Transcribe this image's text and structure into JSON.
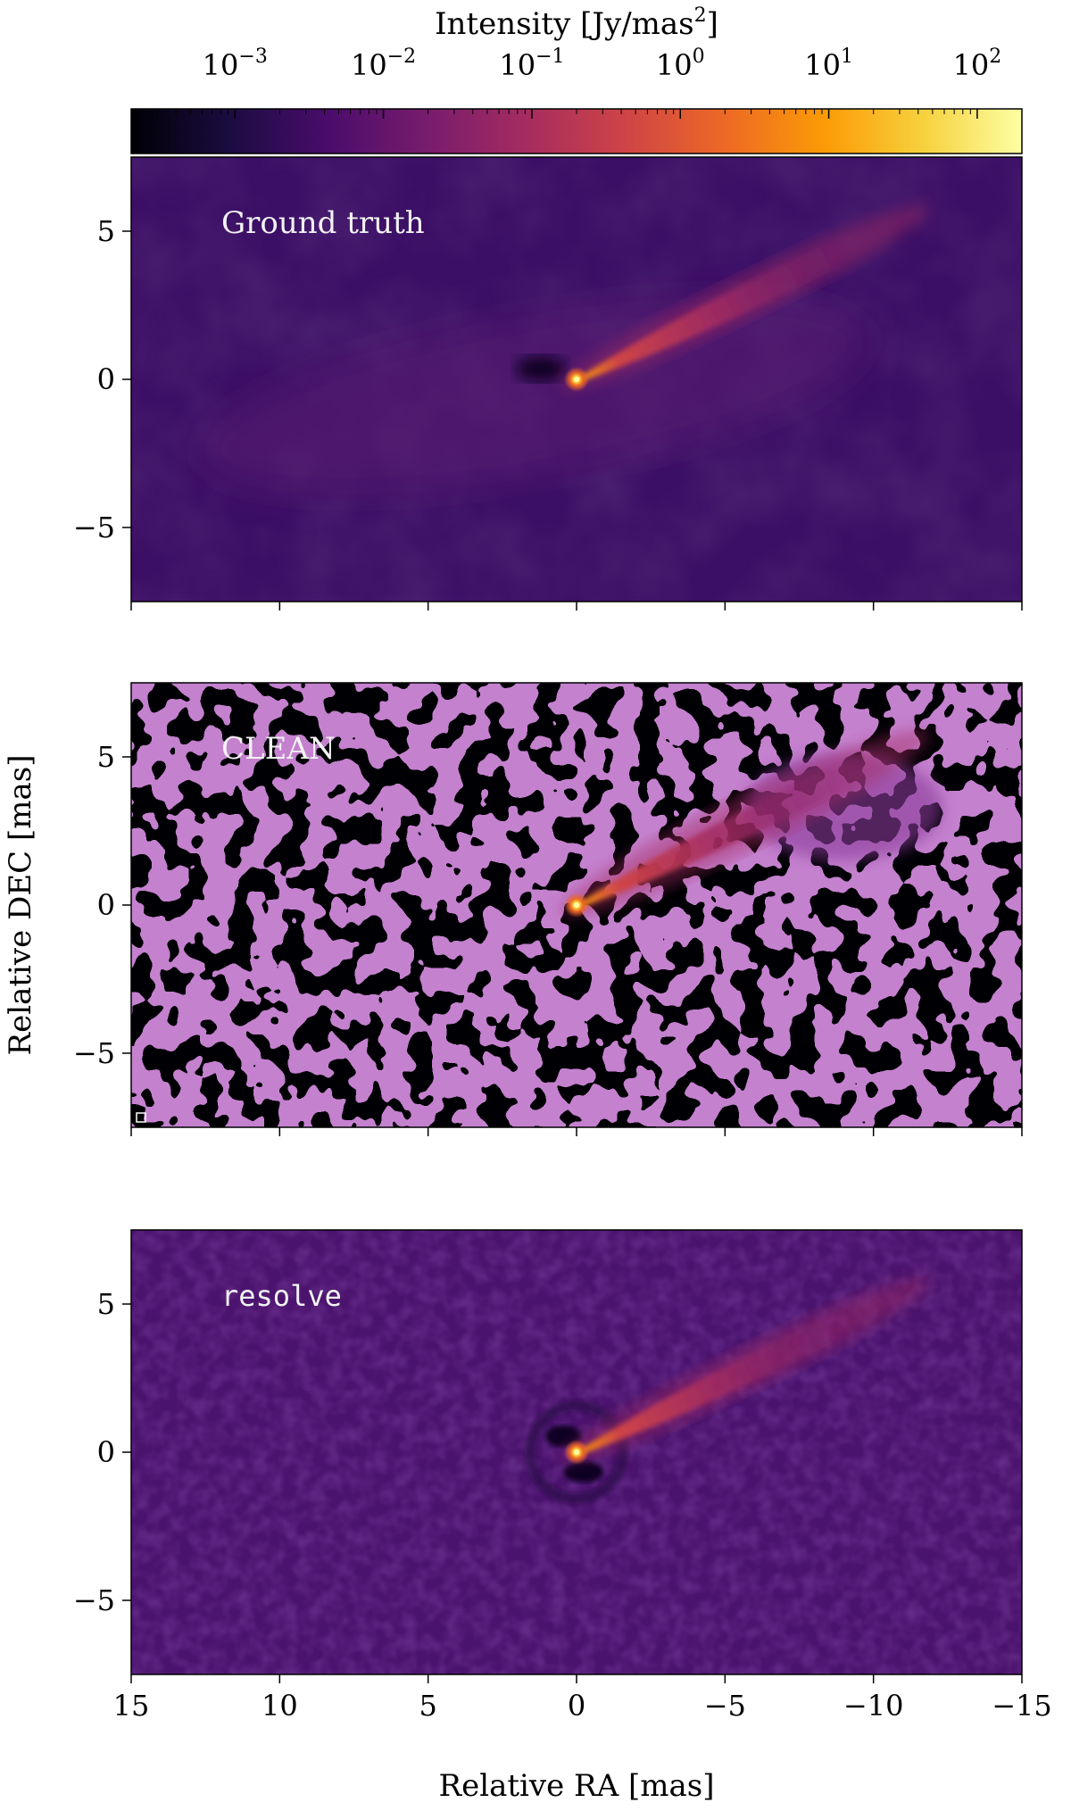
{
  "chart_data": {
    "type": "heatmap",
    "colorbar": {
      "label_prefix": "Intensity [Jy/mas",
      "label_exp": "2",
      "label_suffix": "]",
      "scale": "log",
      "colormap": "inferno",
      "range": [
        0.0002,
        200
      ],
      "ticks": [
        {
          "value": 0.001,
          "base": "10",
          "exp": "−3"
        },
        {
          "value": 0.01,
          "base": "10",
          "exp": "−2"
        },
        {
          "value": 0.1,
          "base": "10",
          "exp": "−1"
        },
        {
          "value": 1,
          "base": "10",
          "exp": "0"
        },
        {
          "value": 10,
          "base": "10",
          "exp": "1"
        },
        {
          "value": 100,
          "base": "10",
          "exp": "2"
        }
      ]
    },
    "xlabel": "Relative RA [mas]",
    "ylabel": "Relative DEC [mas]",
    "xlim": [
      15,
      -15
    ],
    "ylim": [
      -7.5,
      7.5
    ],
    "xticks": [
      {
        "value": 15,
        "label": "15"
      },
      {
        "value": 10,
        "label": "10"
      },
      {
        "value": 5,
        "label": "5"
      },
      {
        "value": 0,
        "label": "0"
      },
      {
        "value": -5,
        "label": "−5"
      },
      {
        "value": -10,
        "label": "−10"
      },
      {
        "value": -15,
        "label": "−15"
      }
    ],
    "yticks": [
      {
        "value": 5,
        "label": "5"
      },
      {
        "value": 0,
        "label": "0"
      },
      {
        "value": -5,
        "label": "−5"
      }
    ],
    "panels": [
      {
        "name": "ground-truth",
        "label": "Ground truth",
        "style": "truth"
      },
      {
        "name": "clean",
        "label": "CLEAN",
        "style": "clean"
      },
      {
        "name": "resolve",
        "label": "resolve",
        "style": "resolve"
      }
    ],
    "colors": {
      "inferno": [
        "#000004",
        "#1b0c41",
        "#4a0c6b",
        "#781c6d",
        "#a52c60",
        "#cf4446",
        "#ed6925",
        "#fb9b06",
        "#f7d13d",
        "#fcffa4"
      ]
    }
  }
}
